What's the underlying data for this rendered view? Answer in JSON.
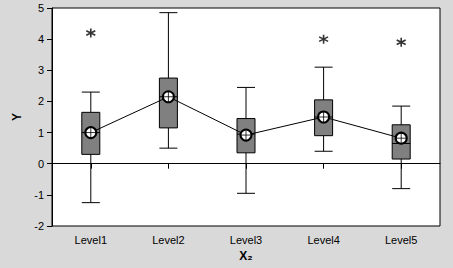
{
  "chart_data": {
    "type": "boxplot",
    "x_label": "X₂",
    "y_label": "Y",
    "categories": [
      "Level1",
      "Level2",
      "Level3",
      "Level4",
      "Level5"
    ],
    "ylim": [
      -2,
      5
    ],
    "yticks": [
      -2,
      -1,
      0,
      1,
      2,
      3,
      4,
      5
    ],
    "grid": false,
    "series": [
      {
        "type": "boxplot",
        "color": "#808080",
        "values": [
          [
            -1.25,
            0.3,
            1.0,
            1.65,
            2.3
          ],
          [
            0.5,
            1.15,
            2.15,
            2.75,
            4.85
          ],
          [
            -0.95,
            0.35,
            0.95,
            1.45,
            2.45
          ],
          [
            0.4,
            0.9,
            1.5,
            2.05,
            3.1
          ],
          [
            -0.8,
            0.15,
            0.65,
            1.25,
            1.85
          ]
        ]
      },
      {
        "type": "scatter",
        "marker": "asterisk",
        "color": "#000000",
        "values": [
          4.2,
          null,
          null,
          4.0,
          3.9
        ]
      },
      {
        "type": "line",
        "marker": "circle-cross",
        "color": "#000000",
        "line_style": "solid",
        "values": [
          1.0,
          2.15,
          0.92,
          1.5,
          0.82
        ]
      }
    ]
  }
}
